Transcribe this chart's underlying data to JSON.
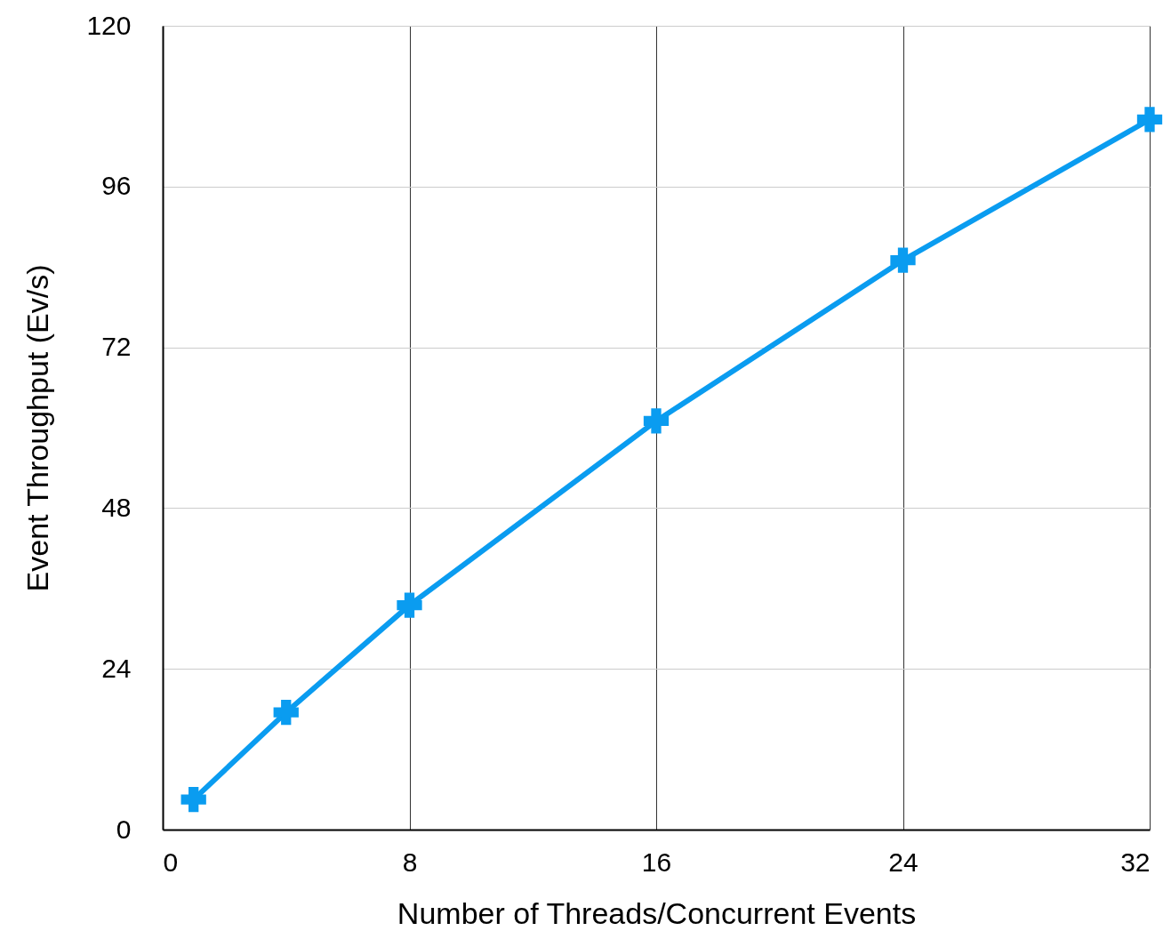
{
  "chart_data": {
    "type": "line",
    "xlabel": "Number of Threads/Concurrent Events",
    "ylabel": "Event Throughput (Ev/s)",
    "x": [
      1,
      4,
      8,
      16,
      24,
      32
    ],
    "series": [
      {
        "color": "#0a9cf0",
        "values": [
          4.5,
          17.5,
          33.5,
          61,
          85,
          106
        ]
      }
    ],
    "xlim": [
      0,
      32
    ],
    "xticks": [
      0,
      8,
      16,
      24,
      32
    ],
    "ylim": [
      0,
      120
    ],
    "yticks": [
      0,
      24,
      48,
      72,
      96,
      120
    ],
    "grid": true,
    "marker": "cross",
    "line_style": "solid"
  }
}
